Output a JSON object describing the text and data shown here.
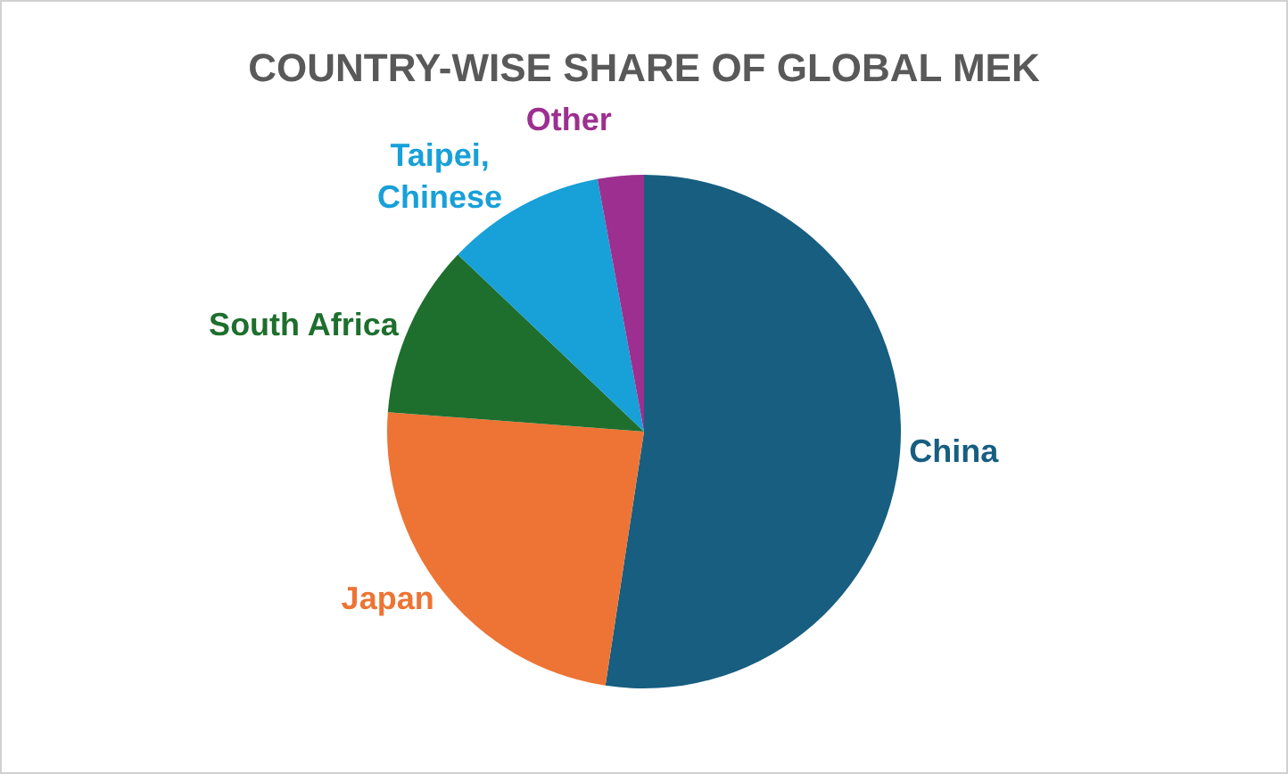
{
  "chart_data": {
    "type": "pie",
    "title": "COUNTRY-WISE SHARE OF GLOBAL MEK",
    "categories": [
      "China",
      "Japan",
      "South Africa",
      "Taipei, Chinese",
      "Other"
    ],
    "values": [
      52.4,
      23.8,
      10.9,
      10.0,
      2.9
    ],
    "colors": [
      "#175e80",
      "#ed7434",
      "#1e6f2e",
      "#18a0d8",
      "#9c2f8f"
    ],
    "legend": false
  }
}
